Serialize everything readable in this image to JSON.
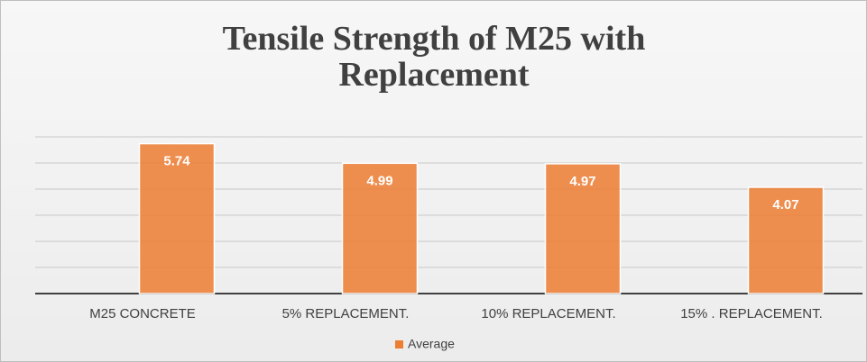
{
  "chart_data": {
    "type": "bar",
    "title": "Tensile Strength of M25 with Replacement",
    "categories": [
      "M25 CONCRETE",
      "5%  REPLACEMENT.",
      "10%  REPLACEMENT.",
      "15% . REPLACEMENT."
    ],
    "series": [
      {
        "name": "Average",
        "color": "#ed7d31",
        "values": [
          5.74,
          4.99,
          4.97,
          4.07
        ]
      }
    ],
    "ylim": [
      0,
      6
    ],
    "yticks": [
      0,
      1,
      2,
      3,
      4,
      5,
      6
    ],
    "grid": true,
    "legend": "bottom"
  }
}
